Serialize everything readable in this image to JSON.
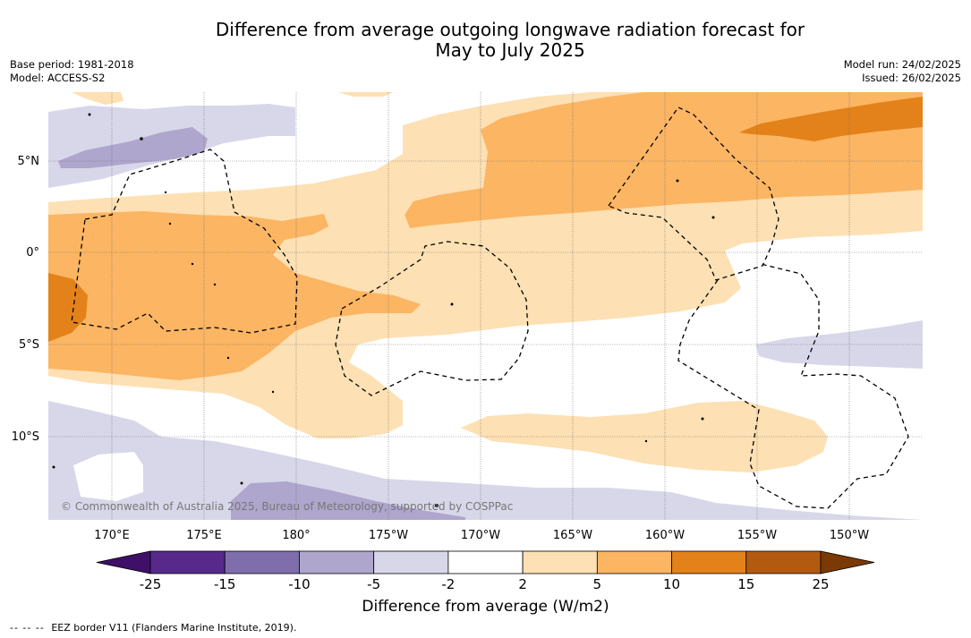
{
  "title_line1": "Difference from average outgoing longwave radiation forecast for",
  "title_line2": "May to July 2025",
  "base_period": "Base period: 1981-2018",
  "model": "Model: ACCESS-S2",
  "model_run": "Model run: 24/02/2025",
  "issued": "Issued: 26/02/2025",
  "copyright": "© Commonwealth of Australia 2025, Bureau of Meteorology, supported by COSPPac",
  "lat_labels": [
    "5°N",
    "0°",
    "5°S",
    "10°S"
  ],
  "lon_labels": [
    "170°E",
    "175°E",
    "180°",
    "175°W",
    "170°W",
    "165°W",
    "160°W",
    "155°W",
    "150°W"
  ],
  "colorbar": {
    "label": "Difference from average (W/m2)",
    "ticks": [
      "-25",
      "-15",
      "-10",
      "-5",
      "-2",
      "2",
      "5",
      "10",
      "15",
      "25"
    ],
    "colors": [
      "#3f1068",
      "#56298a",
      "#7f6eab",
      "#aea6cc",
      "#d8d7ea",
      "#ffffff",
      "#fde0b3",
      "#fbb563",
      "#e3821a",
      "#b25b10",
      "#7a3905"
    ]
  },
  "footer": {
    "dash_symbol": "--  --  --",
    "text": "EEZ border V11 (Flanders Marine Institute, 2019)."
  }
}
